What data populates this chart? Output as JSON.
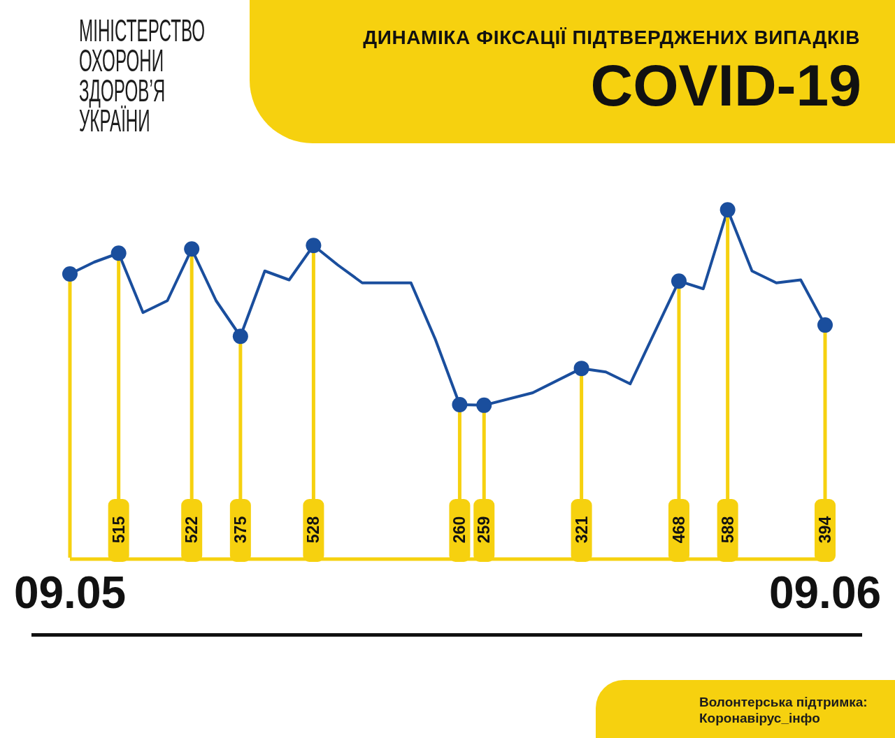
{
  "chart_data": {
    "type": "line",
    "title": "ДИНАМІКА ФІКСАЦІЇ ПІДТВЕРДЖЕНИХ ВИПАДКІВ",
    "subtitle": "COVID-19",
    "annotations": [
      "МІНІСТЕРСТВО ОХОРОНИ ЗДОРОВ’Я УКРАЇНИ",
      "Волонтерська підтримка: Коронавірус_інфо"
    ],
    "x": [
      "--05-09",
      "--05-10",
      "--05-11",
      "--05-12",
      "--05-13",
      "--05-14",
      "--05-15",
      "--05-16",
      "--05-17",
      "--05-18",
      "--05-19",
      "--05-20",
      "--05-21",
      "--05-23",
      "--05-24",
      "--05-25",
      "--05-26",
      "--05-28",
      "--05-30",
      "--05-31",
      "--06-01",
      "--06-03",
      "--06-04",
      "--06-05",
      "--06-06",
      "--06-07",
      "--06-08",
      "--06-09"
    ],
    "series": [
      {
        "color": "#1a4e9d",
        "values": [
          480,
          500,
          515,
          415,
          435,
          522,
          435,
          375,
          485,
          470,
          528,
          495,
          465,
          465,
          370,
          260,
          259,
          280,
          321,
          315,
          295,
          468,
          455,
          588,
          485,
          465,
          470,
          394
        ],
        "value_labels": [
          null,
          null,
          "515",
          null,
          null,
          "522",
          null,
          "375",
          null,
          null,
          "528",
          null,
          null,
          null,
          null,
          "260",
          "259",
          null,
          "321",
          null,
          null,
          "468",
          null,
          "588",
          null,
          null,
          null,
          "394"
        ]
      }
    ],
    "xlim": [
      "--05-09",
      "--06-09"
    ],
    "xticks": [
      {
        "value": "--05-09",
        "label": "09.05"
      },
      {
        "value": "--06-09",
        "label": "09.06"
      }
    ],
    "tick_labels": "x"
  }
}
